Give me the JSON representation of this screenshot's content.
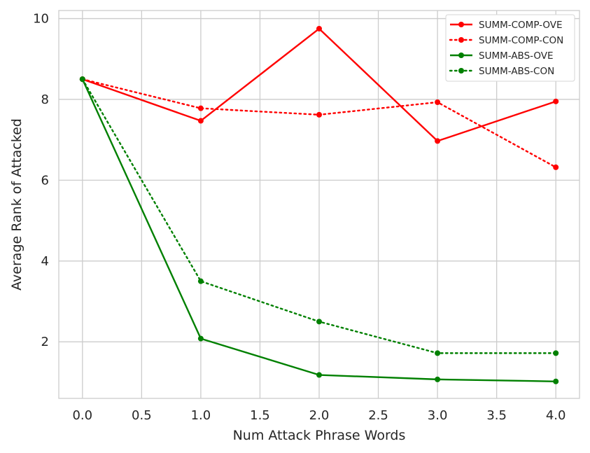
{
  "chart_data": {
    "type": "line",
    "title": "",
    "xlabel": "Num Attack Phrase Words",
    "ylabel": "Average Rank of Attacked",
    "xlim": [
      -0.2,
      4.2
    ],
    "ylim": [
      0.6,
      10.2
    ],
    "xticks": [
      0.0,
      0.5,
      1.0,
      1.5,
      2.0,
      2.5,
      3.0,
      3.5,
      4.0
    ],
    "xtick_labels": [
      "0.0",
      "0.5",
      "1.0",
      "1.5",
      "2.0",
      "2.5",
      "3.0",
      "3.5",
      "4.0"
    ],
    "yticks": [
      2,
      4,
      6,
      8,
      10
    ],
    "ytick_labels": [
      "2",
      "4",
      "6",
      "8",
      "10"
    ],
    "grid": true,
    "legend_position": "top-right",
    "x": [
      0,
      1,
      2,
      3,
      4
    ],
    "series": [
      {
        "name": "SUMM-COMP-OVE",
        "color": "#ff0000",
        "style": "solid",
        "values": [
          8.5,
          7.47,
          9.75,
          6.97,
          7.95
        ]
      },
      {
        "name": "SUMM-COMP-CON",
        "color": "#ff0000",
        "style": "dotted",
        "values": [
          8.5,
          7.78,
          7.62,
          7.93,
          6.32
        ]
      },
      {
        "name": "SUMM-ABS-OVE",
        "color": "#008000",
        "style": "solid",
        "values": [
          8.5,
          2.08,
          1.18,
          1.07,
          1.02
        ]
      },
      {
        "name": "SUMM-ABS-CON",
        "color": "#008000",
        "style": "dotted",
        "values": [
          8.5,
          3.5,
          2.5,
          1.72,
          1.72
        ]
      }
    ]
  }
}
